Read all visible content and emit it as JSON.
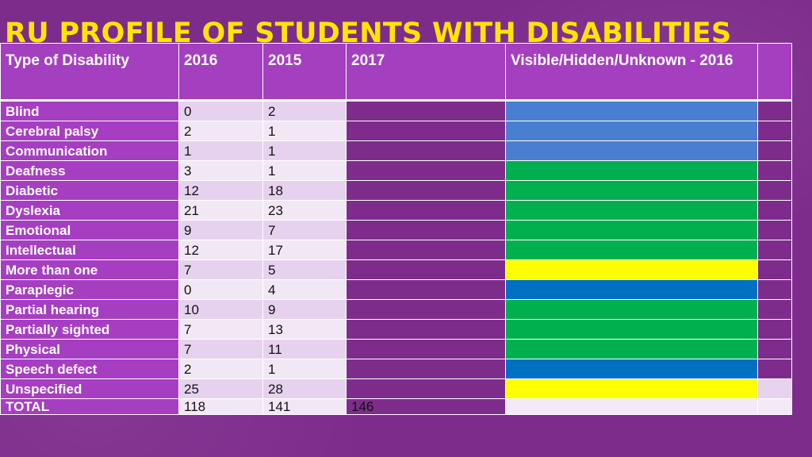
{
  "title": "RU PROFILE OF STUDENTS WITH DISABILITIES",
  "headers": [
    "Type of Disability",
    "2016",
    "2015",
    "2017",
    "Visible/Hidden/Unknown - 2016",
    ""
  ],
  "colors": {
    "visible": "#4a7ed0",
    "hidden": "#00b04f",
    "unknown": "#ffff00",
    "visible_dark": "#0070c0",
    "extra_light": "#e7d3ee"
  },
  "rows": [
    {
      "type": "Blind",
      "y2016": "0",
      "y2015": "2",
      "status_color": "#4a7ed0"
    },
    {
      "type": "Cerebral palsy",
      "y2016": "2",
      "y2015": "1",
      "status_color": "#4a7ed0"
    },
    {
      "type": "Communication",
      "y2016": "1",
      "y2015": "1",
      "status_color": "#4a7ed0"
    },
    {
      "type": "Deafness",
      "y2016": "3",
      "y2015": "1",
      "status_color": "#00b04f"
    },
    {
      "type": "Diabetic",
      "y2016": "12",
      "y2015": "18",
      "status_color": "#00b04f"
    },
    {
      "type": "Dyslexia",
      "y2016": "21",
      "y2015": "23",
      "status_color": "#00b04f"
    },
    {
      "type": "Emotional",
      "y2016": "9",
      "y2015": "7",
      "status_color": "#00b04f"
    },
    {
      "type": "Intellectual",
      "y2016": "12",
      "y2015": "17",
      "status_color": "#00b04f"
    },
    {
      "type": "More than one",
      "y2016": "7",
      "y2015": "5",
      "status_color": "#ffff00"
    },
    {
      "type": "Paraplegic",
      "y2016": "0",
      "y2015": "4",
      "status_color": "#0070c0"
    },
    {
      "type": "Partial hearing",
      "y2016": "10",
      "y2015": "9",
      "status_color": "#00b04f"
    },
    {
      "type": "Partially sighted",
      "y2016": "7",
      "y2015": "13",
      "status_color": "#00b04f"
    },
    {
      "type": "Physical",
      "y2016": "7",
      "y2015": "11",
      "status_color": "#00b04f"
    },
    {
      "type": "Speech defect",
      "y2016": "2",
      "y2015": "1",
      "status_color": "#0070c0"
    },
    {
      "type": "Unspecified",
      "y2016": "25",
      "y2015": "28",
      "status_color": "#ffff00",
      "extra_color": "#e7d3ee"
    }
  ],
  "total": {
    "label": "TOTAL",
    "y2016": "118",
    "y2015": "141",
    "y2017": "146"
  }
}
